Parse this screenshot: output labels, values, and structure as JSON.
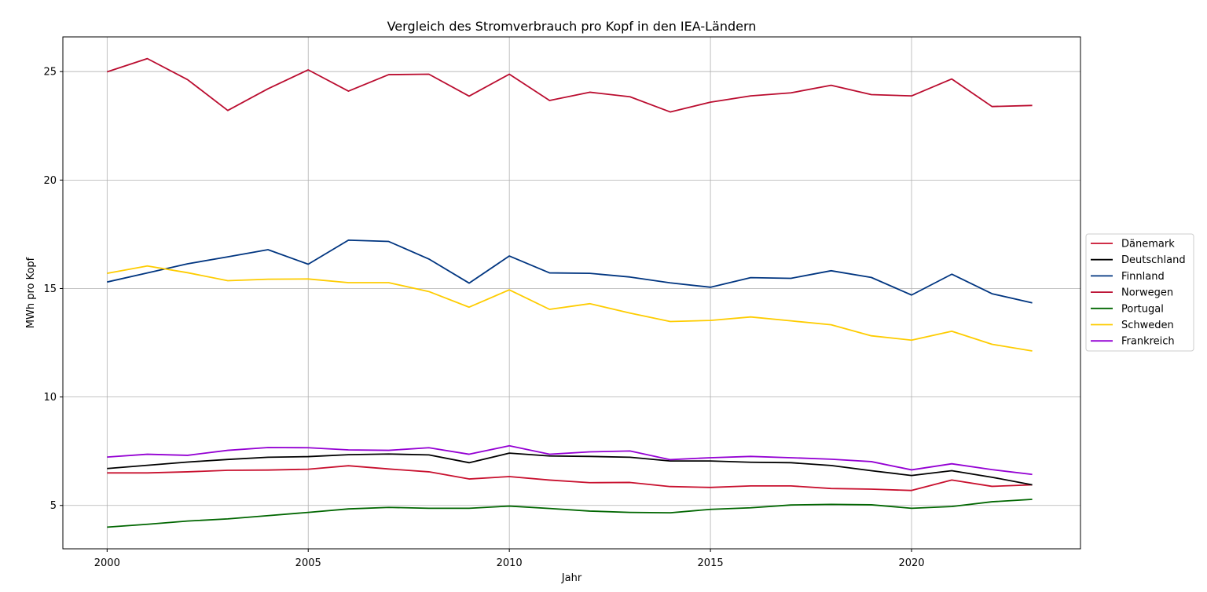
{
  "chart_data": {
    "type": "line",
    "title": "Vergleich des Stromverbrauch pro Kopf in den IEA-Ländern",
    "xlabel": "Jahr",
    "ylabel": "MWh pro Kopf",
    "xlim": [
      1998.9,
      2024.2
    ],
    "ylim": [
      3.0,
      26.6
    ],
    "x_ticks": [
      2000,
      2005,
      2010,
      2015,
      2020
    ],
    "y_ticks": [
      5,
      10,
      15,
      20,
      25
    ],
    "grid": true,
    "legend_position": "right",
    "x": [
      2000,
      2001,
      2002,
      2003,
      2004,
      2005,
      2006,
      2007,
      2008,
      2009,
      2010,
      2011,
      2012,
      2013,
      2014,
      2015,
      2016,
      2017,
      2018,
      2019,
      2020,
      2021,
      2022,
      2023
    ],
    "series": [
      {
        "name": "Dänemark",
        "color": "#c8102e",
        "values": [
          6.5,
          6.5,
          6.55,
          6.62,
          6.63,
          6.67,
          6.83,
          6.68,
          6.55,
          6.22,
          6.33,
          6.17,
          6.05,
          6.06,
          5.87,
          5.83,
          5.9,
          5.9,
          5.78,
          5.75,
          5.69,
          6.17,
          5.88,
          5.95
        ]
      },
      {
        "name": "Deutschland",
        "color": "#000000",
        "values": [
          6.7,
          6.85,
          7.0,
          7.12,
          7.22,
          7.25,
          7.34,
          7.37,
          7.33,
          6.97,
          7.41,
          7.28,
          7.26,
          7.22,
          7.05,
          7.05,
          6.99,
          6.97,
          6.84,
          6.6,
          6.38,
          6.6,
          6.3,
          5.95
        ]
      },
      {
        "name": "Finnland",
        "color": "#003580",
        "values": [
          15.3,
          15.72,
          16.14,
          16.46,
          16.79,
          16.12,
          17.23,
          17.17,
          16.36,
          15.25,
          16.5,
          15.72,
          15.7,
          15.53,
          15.26,
          15.06,
          15.5,
          15.47,
          15.82,
          15.51,
          14.7,
          15.66,
          14.76,
          14.34
        ]
      },
      {
        "name": "Norwegen",
        "color": "#ba0c2f",
        "values": [
          24.99,
          25.6,
          24.63,
          23.21,
          24.21,
          25.08,
          24.1,
          24.86,
          24.88,
          23.87,
          24.88,
          23.67,
          24.05,
          23.84,
          23.14,
          23.59,
          23.88,
          24.02,
          24.37,
          23.94,
          23.88,
          24.66,
          23.39,
          23.44
        ]
      },
      {
        "name": "Portugal",
        "color": "#006600",
        "values": [
          4.0,
          4.13,
          4.28,
          4.38,
          4.53,
          4.68,
          4.84,
          4.91,
          4.87,
          4.87,
          4.97,
          4.86,
          4.74,
          4.68,
          4.66,
          4.82,
          4.89,
          5.02,
          5.05,
          5.03,
          4.87,
          4.95,
          5.17,
          5.28
        ]
      },
      {
        "name": "Schweden",
        "color": "#fecc00",
        "values": [
          15.7,
          16.04,
          15.73,
          15.36,
          15.43,
          15.44,
          15.27,
          15.27,
          14.86,
          14.14,
          14.94,
          14.04,
          14.3,
          13.87,
          13.48,
          13.53,
          13.69,
          13.51,
          13.33,
          12.82,
          12.62,
          13.03,
          12.43,
          12.12
        ]
      },
      {
        "name": "Frankreich",
        "color": "#9400d3",
        "values": [
          7.23,
          7.36,
          7.31,
          7.54,
          7.67,
          7.66,
          7.56,
          7.54,
          7.66,
          7.36,
          7.75,
          7.36,
          7.47,
          7.51,
          7.11,
          7.2,
          7.26,
          7.2,
          7.13,
          7.02,
          6.64,
          6.92,
          6.65,
          6.43
        ]
      }
    ]
  }
}
